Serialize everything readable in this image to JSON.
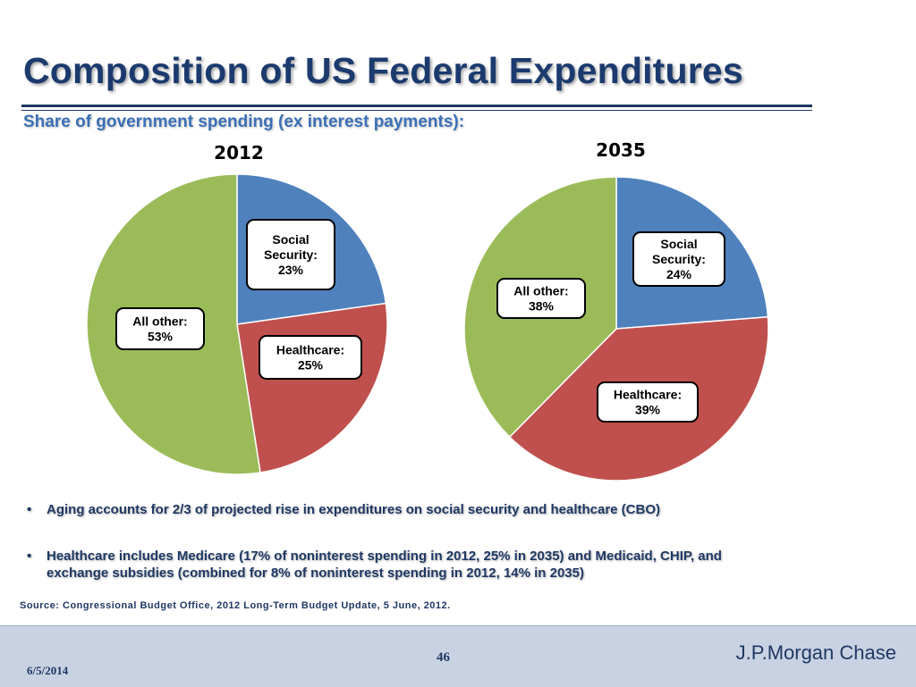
{
  "slide": {
    "title": "Composition of US Federal Expenditures",
    "subtitle": "Share of government spending (ex interest payments):"
  },
  "colors": {
    "social_security": "#4f81bd",
    "healthcare": "#c0504d",
    "all_other": "#9bbb59",
    "title": "#1b3a6e",
    "subtitle": "#3b6fb6"
  },
  "chart_data": [
    {
      "type": "pie",
      "title": "2012",
      "slices": [
        {
          "name": "Social Security",
          "value": 23,
          "label_lines": [
            "Social",
            "Security:",
            "23%"
          ]
        },
        {
          "name": "Healthcare",
          "value": 25,
          "label_lines": [
            "Healthcare:",
            "25%"
          ]
        },
        {
          "name": "All other",
          "value": 53,
          "label_lines": [
            "All other:",
            "53%"
          ]
        }
      ]
    },
    {
      "type": "pie",
      "title": "2035",
      "slices": [
        {
          "name": "Social Security",
          "value": 24,
          "label_lines": [
            "Social",
            "Security:",
            "24%"
          ]
        },
        {
          "name": "Healthcare",
          "value": 39,
          "label_lines": [
            "Healthcare:",
            "39%"
          ]
        },
        {
          "name": "All other",
          "value": 38,
          "label_lines": [
            "All other:",
            "38%"
          ]
        }
      ]
    }
  ],
  "bullets": [
    {
      "marker": "•",
      "text": "Aging accounts for 2/3 of projected rise in expenditures on social security and healthcare (CBO)"
    },
    {
      "marker": "•",
      "text": "Healthcare includes Medicare (17% of noninterest spending in 2012, 25% in 2035) and Medicaid, CHIP, and exchange subsidies (combined for 8% of noninterest spending in 2012, 14% in 2035)"
    }
  ],
  "source": "Source: Congressional Budget Office, 2012 Long-Term Budget Update, 5 June, 2012.",
  "footer": {
    "date": "6/5/2014",
    "page": "46",
    "brand": "J.P.Morgan Chase"
  }
}
